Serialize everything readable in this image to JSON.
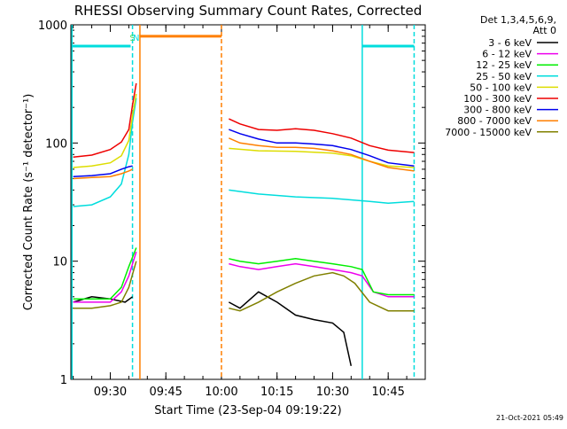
{
  "chart_data": {
    "type": "line",
    "title": "RHESSI Observing Summary Count Rates, Corrected",
    "xlabel": "Start Time (23-Sep-04 09:19:22)",
    "ylabel": "Corrected Count Rate (s⁻¹ detector⁻¹)",
    "yscale": "log",
    "ylim": [
      1,
      1000
    ],
    "xlim": [
      "09:19:22",
      "10:55:00"
    ],
    "x_ticks": [
      "09:30",
      "09:45",
      "10:00",
      "10:15",
      "10:30",
      "10:45"
    ],
    "y_ticks": [
      "1",
      "10",
      "100",
      "1000"
    ],
    "legend_header": [
      "Det 1,3,4,5,6,9,",
      "Att 0"
    ],
    "legend_position": "right",
    "flag_labels": [
      {
        "text": "S",
        "at": "09:36",
        "color": "#55dd55"
      },
      {
        "text": "N",
        "at": "09:37",
        "color": "#00dddd"
      }
    ],
    "markers": [
      {
        "type": "vline",
        "x": "09:19:40",
        "color": "#00dddd",
        "style": "solid"
      },
      {
        "type": "vline",
        "x": "09:36:00",
        "color": "#00dddd",
        "style": "dashed"
      },
      {
        "type": "vline",
        "x": "09:38:00",
        "color": "#ff7f00",
        "style": "solid"
      },
      {
        "type": "vline",
        "x": "10:00:00",
        "color": "#ff7f00",
        "style": "dashed"
      },
      {
        "type": "vline",
        "x": "10:38:00",
        "color": "#00dddd",
        "style": "solid"
      },
      {
        "type": "vline",
        "x": "10:52:00",
        "color": "#00dddd",
        "style": "dashed"
      },
      {
        "type": "hbar",
        "x0": "09:19:40",
        "x1": "09:35:30",
        "y": 660,
        "color": "#00dddd"
      },
      {
        "type": "hbar",
        "x0": "09:38:00",
        "x1": "10:00:00",
        "y": 800,
        "color": "#ff7f00"
      },
      {
        "type": "hbar",
        "x0": "10:38:00",
        "x1": "10:52:00",
        "y": 660,
        "color": "#00dddd"
      }
    ],
    "series": [
      {
        "name": "3 - 6 keV",
        "color": "#000000",
        "x": [
          "09:20",
          "09:25",
          "09:30",
          "09:34",
          "09:36",
          "10:02",
          "10:05",
          "10:10",
          "10:15",
          "10:20",
          "10:25",
          "10:30",
          "10:33",
          "10:35"
        ],
        "values": [
          4.5,
          5.0,
          4.8,
          4.5,
          5.0,
          4.5,
          4.0,
          5.5,
          4.5,
          3.5,
          3.2,
          3.0,
          2.5,
          1.3
        ]
      },
      {
        "name": "6 - 12 keV",
        "color": "#ee00ee",
        "x": [
          "09:20",
          "09:25",
          "09:30",
          "09:33",
          "09:35",
          "09:37",
          "10:02",
          "10:05",
          "10:10",
          "10:15",
          "10:20",
          "10:25",
          "10:30",
          "10:35",
          "10:38",
          "10:41",
          "10:45",
          "10:52"
        ],
        "values": [
          4.5,
          4.5,
          4.5,
          5.5,
          7.5,
          12,
          9.5,
          9.0,
          8.5,
          9.0,
          9.5,
          9.0,
          8.5,
          8.0,
          7.5,
          5.5,
          5.0,
          5.0
        ]
      },
      {
        "name": "12 - 25 keV",
        "color": "#00ee00",
        "x": [
          "09:20",
          "09:25",
          "09:30",
          "09:33",
          "09:35",
          "09:37",
          "10:02",
          "10:05",
          "10:10",
          "10:15",
          "10:20",
          "10:25",
          "10:30",
          "10:35",
          "10:38",
          "10:41",
          "10:45",
          "10:52"
        ],
        "values": [
          4.8,
          4.8,
          4.8,
          6,
          9,
          13,
          10.5,
          10,
          9.5,
          10,
          10.5,
          10,
          9.5,
          9,
          8.5,
          5.5,
          5.2,
          5.2
        ]
      },
      {
        "name": "25 - 50 keV",
        "color": "#00dddd",
        "x": [
          "09:20",
          "09:25",
          "09:30",
          "09:33",
          "09:35",
          "09:36",
          "09:37",
          "10:02",
          "10:10",
          "10:20",
          "10:30",
          "10:35",
          "10:40",
          "10:45",
          "10:52"
        ],
        "values": [
          29,
          30,
          35,
          45,
          80,
          150,
          240,
          40,
          37,
          35,
          34,
          33,
          32,
          31,
          32
        ]
      },
      {
        "name": "50 - 100 keV",
        "color": "#dddd00",
        "x": [
          "09:20",
          "09:25",
          "09:30",
          "09:33",
          "09:35",
          "09:36",
          "09:37",
          "10:02",
          "10:10",
          "10:20",
          "10:30",
          "10:35",
          "10:40",
          "10:45",
          "10:52"
        ],
        "values": [
          62,
          64,
          68,
          78,
          105,
          170,
          260,
          90,
          86,
          85,
          82,
          78,
          70,
          64,
          62
        ]
      },
      {
        "name": "100 - 300 keV",
        "color": "#ee0000",
        "x": [
          "09:20",
          "09:25",
          "09:30",
          "09:33",
          "09:35",
          "09:36",
          "09:37",
          "10:02",
          "10:05",
          "10:10",
          "10:15",
          "10:20",
          "10:25",
          "10:30",
          "10:35",
          "10:40",
          "10:45",
          "10:52"
        ],
        "values": [
          76,
          79,
          88,
          102,
          130,
          210,
          320,
          160,
          145,
          130,
          128,
          132,
          128,
          120,
          110,
          95,
          87,
          83
        ]
      },
      {
        "name": "300 - 800 keV",
        "color": "#0000ee",
        "x": [
          "09:20",
          "09:25",
          "09:30",
          "09:33",
          "09:35",
          "09:36",
          "10:02",
          "10:05",
          "10:10",
          "10:15",
          "10:20",
          "10:25",
          "10:30",
          "10:35",
          "10:40",
          "10:45",
          "10:52"
        ],
        "values": [
          52,
          53,
          55,
          60,
          63,
          64,
          130,
          120,
          108,
          100,
          100,
          98,
          95,
          88,
          78,
          68,
          64
        ]
      },
      {
        "name": "800 - 7000 keV",
        "color": "#ff7f00",
        "x": [
          "09:20",
          "09:25",
          "09:30",
          "09:33",
          "09:35",
          "09:36",
          "10:02",
          "10:05",
          "10:10",
          "10:15",
          "10:20",
          "10:25",
          "10:30",
          "10:35",
          "10:40",
          "10:45",
          "10:52"
        ],
        "values": [
          50,
          51,
          52,
          55,
          58,
          60,
          110,
          100,
          95,
          92,
          92,
          90,
          86,
          80,
          70,
          62,
          58
        ]
      },
      {
        "name": "7000 - 15000 keV",
        "color": "#808000",
        "x": [
          "09:20",
          "09:25",
          "09:30",
          "09:33",
          "09:35",
          "09:37",
          "10:02",
          "10:05",
          "10:10",
          "10:15",
          "10:20",
          "10:25",
          "10:30",
          "10:33",
          "10:36",
          "10:40",
          "10:45",
          "10:52"
        ],
        "values": [
          4.0,
          4.0,
          4.2,
          4.5,
          6,
          10,
          4.0,
          3.8,
          4.5,
          5.5,
          6.5,
          7.5,
          8.0,
          7.5,
          6.5,
          4.5,
          3.8,
          3.8
        ]
      }
    ]
  },
  "footer": {
    "timestamp": "21-Oct-2021 05:49"
  }
}
